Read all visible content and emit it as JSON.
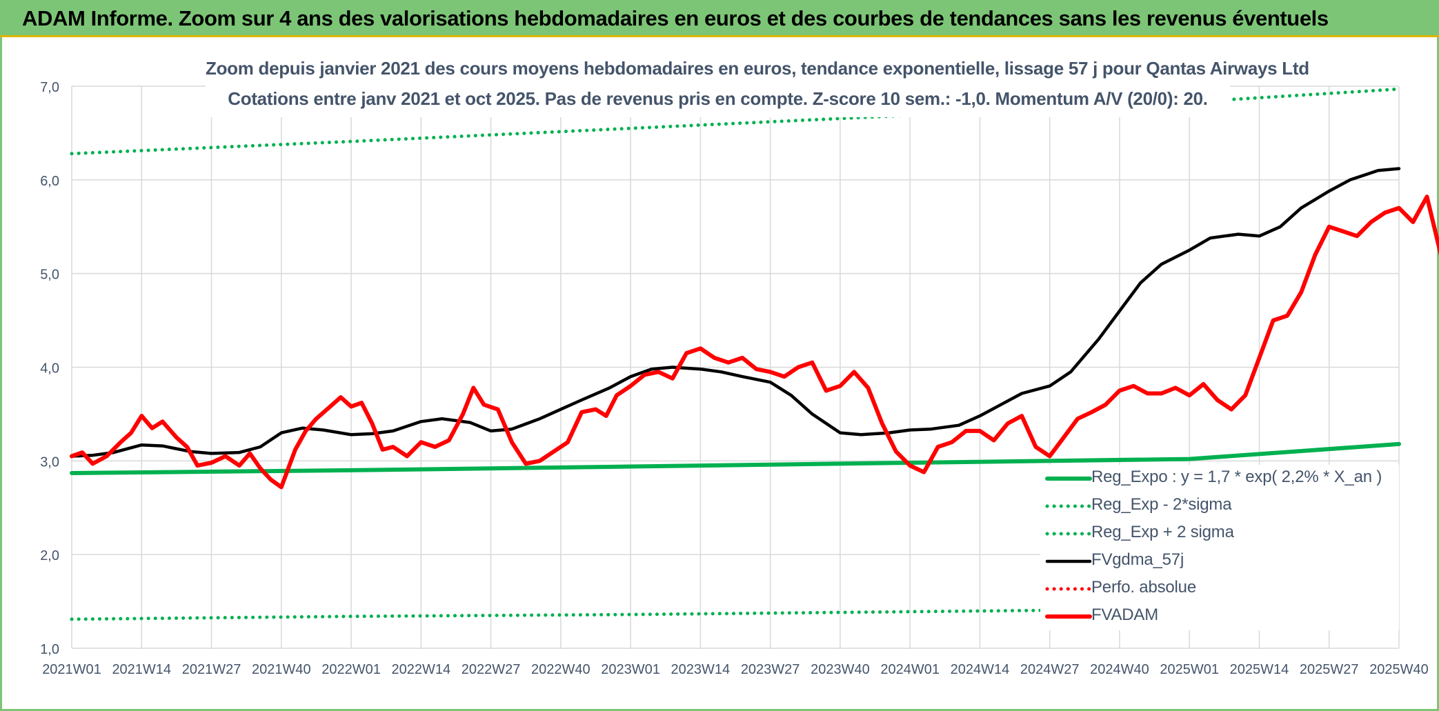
{
  "header": {
    "title": "ADAM Informe. Zoom sur 4 ans des valorisations hebdomadaires en euros et des courbes de tendances sans les revenus éventuels"
  },
  "subtitle": {
    "line1": "Zoom depuis janvier 2021 des cours moyens hebdomadaires en euros, tendance exponentielle, lissage 57 j pour Qantas Airways Ltd",
    "line2": "Cotations entre janv 2021 et oct 2025. Pas de revenus pris en compte. Z-score 10 sem.: -1,0. Momentum A/V (20/0): 20."
  },
  "colors": {
    "grid": "#d9d9d9",
    "axis_text": "#44546a",
    "reg_green": "#00b050",
    "dotted_green": "#00b050",
    "dotted_red": "#ff0000",
    "smooth_black": "#000000",
    "price_red": "#ff0000"
  },
  "chart_data": {
    "type": "line",
    "x_categories": [
      "2021W01",
      "2021W14",
      "2021W27",
      "2021W40",
      "2022W01",
      "2022W14",
      "2022W27",
      "2022W40",
      "2023W01",
      "2023W14",
      "2023W27",
      "2023W40",
      "2024W01",
      "2024W14",
      "2024W27",
      "2024W40",
      "2025W01",
      "2025W14",
      "2025W27",
      "2025W40"
    ],
    "ylim": [
      1.0,
      7.0
    ],
    "y_ticks": [
      "1,0",
      "2,0",
      "3,0",
      "4,0",
      "5,0",
      "6,0",
      "7,0"
    ],
    "grid": true,
    "legend_position": "bottom-right",
    "series": [
      {
        "name": "Reg_Expo : y = 1,7 * exp( 2,2% *  X_an )",
        "style": "solid-thick",
        "color": "#00b050",
        "points": [
          [
            0,
            2.87
          ],
          [
            4,
            2.9
          ],
          [
            8,
            2.94
          ],
          [
            12,
            2.98
          ],
          [
            16,
            3.02
          ],
          [
            19,
            3.18
          ]
        ]
      },
      {
        "name": "Reg_Exp - 2*sigma",
        "style": "dotted",
        "color": "#00b050",
        "points": [
          [
            0,
            1.31
          ],
          [
            4,
            1.34
          ],
          [
            8,
            1.36
          ],
          [
            12,
            1.39
          ],
          [
            16,
            1.42
          ],
          [
            19,
            1.46
          ]
        ]
      },
      {
        "name": "Reg_Exp + 2 sigma",
        "style": "dotted",
        "color": "#00b050",
        "points": [
          [
            0,
            6.28
          ],
          [
            4,
            6.41
          ],
          [
            8,
            6.55
          ],
          [
            12,
            6.69
          ],
          [
            16,
            6.83
          ],
          [
            19,
            6.97
          ]
        ]
      },
      {
        "name": "FVgdma_57j",
        "style": "solid",
        "color": "#000000",
        "points": [
          [
            0,
            3.05
          ],
          [
            0.3,
            3.06
          ],
          [
            0.6,
            3.09
          ],
          [
            1.0,
            3.17
          ],
          [
            1.3,
            3.16
          ],
          [
            1.7,
            3.1
          ],
          [
            2.0,
            3.08
          ],
          [
            2.4,
            3.09
          ],
          [
            2.7,
            3.15
          ],
          [
            3.0,
            3.3
          ],
          [
            3.3,
            3.35
          ],
          [
            3.6,
            3.33
          ],
          [
            4.0,
            3.28
          ],
          [
            4.3,
            3.29
          ],
          [
            4.6,
            3.32
          ],
          [
            5.0,
            3.42
          ],
          [
            5.3,
            3.45
          ],
          [
            5.7,
            3.41
          ],
          [
            6.0,
            3.32
          ],
          [
            6.3,
            3.34
          ],
          [
            6.7,
            3.45
          ],
          [
            7.0,
            3.55
          ],
          [
            7.3,
            3.65
          ],
          [
            7.7,
            3.78
          ],
          [
            8.0,
            3.9
          ],
          [
            8.3,
            3.98
          ],
          [
            8.6,
            4.0
          ],
          [
            9.0,
            3.98
          ],
          [
            9.3,
            3.95
          ],
          [
            9.6,
            3.9
          ],
          [
            10.0,
            3.84
          ],
          [
            10.3,
            3.7
          ],
          [
            10.6,
            3.5
          ],
          [
            11.0,
            3.3
          ],
          [
            11.3,
            3.28
          ],
          [
            11.7,
            3.3
          ],
          [
            12.0,
            3.33
          ],
          [
            12.3,
            3.34
          ],
          [
            12.7,
            3.38
          ],
          [
            13.0,
            3.48
          ],
          [
            13.3,
            3.6
          ],
          [
            13.6,
            3.72
          ],
          [
            14.0,
            3.8
          ],
          [
            14.3,
            3.95
          ],
          [
            14.7,
            4.3
          ],
          [
            15.0,
            4.6
          ],
          [
            15.3,
            4.9
          ],
          [
            15.6,
            5.1
          ],
          [
            16.0,
            5.25
          ],
          [
            16.3,
            5.38
          ],
          [
            16.7,
            5.42
          ],
          [
            17.0,
            5.4
          ],
          [
            17.3,
            5.5
          ],
          [
            17.6,
            5.7
          ],
          [
            18.0,
            5.88
          ],
          [
            18.3,
            6.0
          ],
          [
            18.7,
            6.1
          ],
          [
            19.0,
            6.12
          ]
        ]
      },
      {
        "name": "Perfo. absolue",
        "style": "dotted",
        "color": "#ff0000",
        "points": []
      },
      {
        "name": "FVADAM",
        "style": "solid-thick",
        "color": "#ff0000",
        "points": [
          [
            0,
            3.05
          ],
          [
            0.15,
            3.09
          ],
          [
            0.3,
            2.97
          ],
          [
            0.5,
            3.05
          ],
          [
            0.7,
            3.2
          ],
          [
            0.85,
            3.3
          ],
          [
            1.0,
            3.48
          ],
          [
            1.15,
            3.35
          ],
          [
            1.3,
            3.42
          ],
          [
            1.5,
            3.25
          ],
          [
            1.65,
            3.15
          ],
          [
            1.8,
            2.95
          ],
          [
            2.0,
            2.98
          ],
          [
            2.2,
            3.05
          ],
          [
            2.4,
            2.95
          ],
          [
            2.55,
            3.08
          ],
          [
            2.7,
            2.92
          ],
          [
            2.85,
            2.8
          ],
          [
            3.0,
            2.72
          ],
          [
            3.2,
            3.12
          ],
          [
            3.35,
            3.32
          ],
          [
            3.5,
            3.45
          ],
          [
            3.7,
            3.58
          ],
          [
            3.85,
            3.68
          ],
          [
            4.0,
            3.58
          ],
          [
            4.15,
            3.62
          ],
          [
            4.3,
            3.4
          ],
          [
            4.45,
            3.12
          ],
          [
            4.6,
            3.15
          ],
          [
            4.8,
            3.05
          ],
          [
            5.0,
            3.2
          ],
          [
            5.2,
            3.15
          ],
          [
            5.4,
            3.22
          ],
          [
            5.6,
            3.5
          ],
          [
            5.75,
            3.78
          ],
          [
            5.9,
            3.6
          ],
          [
            6.1,
            3.55
          ],
          [
            6.3,
            3.2
          ],
          [
            6.5,
            2.97
          ],
          [
            6.7,
            3.0
          ],
          [
            6.9,
            3.1
          ],
          [
            7.1,
            3.2
          ],
          [
            7.3,
            3.52
          ],
          [
            7.5,
            3.55
          ],
          [
            7.65,
            3.48
          ],
          [
            7.8,
            3.7
          ],
          [
            8.0,
            3.8
          ],
          [
            8.2,
            3.92
          ],
          [
            8.4,
            3.95
          ],
          [
            8.6,
            3.88
          ],
          [
            8.8,
            4.15
          ],
          [
            9.0,
            4.2
          ],
          [
            9.2,
            4.1
          ],
          [
            9.4,
            4.05
          ],
          [
            9.6,
            4.1
          ],
          [
            9.8,
            3.98
          ],
          [
            10.0,
            3.95
          ],
          [
            10.2,
            3.9
          ],
          [
            10.4,
            4.0
          ],
          [
            10.6,
            4.05
          ],
          [
            10.8,
            3.75
          ],
          [
            11.0,
            3.8
          ],
          [
            11.2,
            3.95
          ],
          [
            11.4,
            3.78
          ],
          [
            11.6,
            3.4
          ],
          [
            11.8,
            3.1
          ],
          [
            12.0,
            2.95
          ],
          [
            12.2,
            2.88
          ],
          [
            12.4,
            3.15
          ],
          [
            12.6,
            3.2
          ],
          [
            12.8,
            3.32
          ],
          [
            13.0,
            3.32
          ],
          [
            13.2,
            3.22
          ],
          [
            13.4,
            3.4
          ],
          [
            13.6,
            3.48
          ],
          [
            13.8,
            3.15
          ],
          [
            14.0,
            3.05
          ],
          [
            14.2,
            3.25
          ],
          [
            14.4,
            3.45
          ],
          [
            14.6,
            3.52
          ],
          [
            14.8,
            3.6
          ],
          [
            15.0,
            3.75
          ],
          [
            15.2,
            3.8
          ],
          [
            15.4,
            3.72
          ],
          [
            15.6,
            3.72
          ],
          [
            15.8,
            3.78
          ],
          [
            16.0,
            3.7
          ],
          [
            16.2,
            3.82
          ],
          [
            16.4,
            3.65
          ],
          [
            16.6,
            3.55
          ],
          [
            16.8,
            3.7
          ],
          [
            17.0,
            4.1
          ],
          [
            17.2,
            4.5
          ],
          [
            17.4,
            4.55
          ],
          [
            17.6,
            4.8
          ],
          [
            17.8,
            5.2
          ],
          [
            18.0,
            5.5
          ],
          [
            18.2,
            5.45
          ],
          [
            18.4,
            5.4
          ],
          [
            18.6,
            5.55
          ],
          [
            18.8,
            5.65
          ],
          [
            19.0,
            5.7
          ],
          [
            19.2,
            5.55
          ],
          [
            19.4,
            5.82
          ],
          [
            19.6,
            5.2
          ],
          [
            19.8,
            5.5
          ]
        ]
      }
    ]
  },
  "legend": {
    "items": [
      {
        "label": "Reg_Expo : y = 1,7 * exp( 2,2% *  X_an )",
        "color": "#00b050",
        "style": "solid-thick"
      },
      {
        "label": "Reg_Exp - 2*sigma",
        "color": "#00b050",
        "style": "dotted"
      },
      {
        "label": "Reg_Exp + 2 sigma",
        "color": "#00b050",
        "style": "dotted"
      },
      {
        "label": "FVgdma_57j",
        "color": "#000000",
        "style": "solid"
      },
      {
        "label": "Perfo. absolue",
        "color": "#ff0000",
        "style": "dotted"
      },
      {
        "label": "FVADAM",
        "color": "#ff0000",
        "style": "solid-thick"
      }
    ]
  }
}
